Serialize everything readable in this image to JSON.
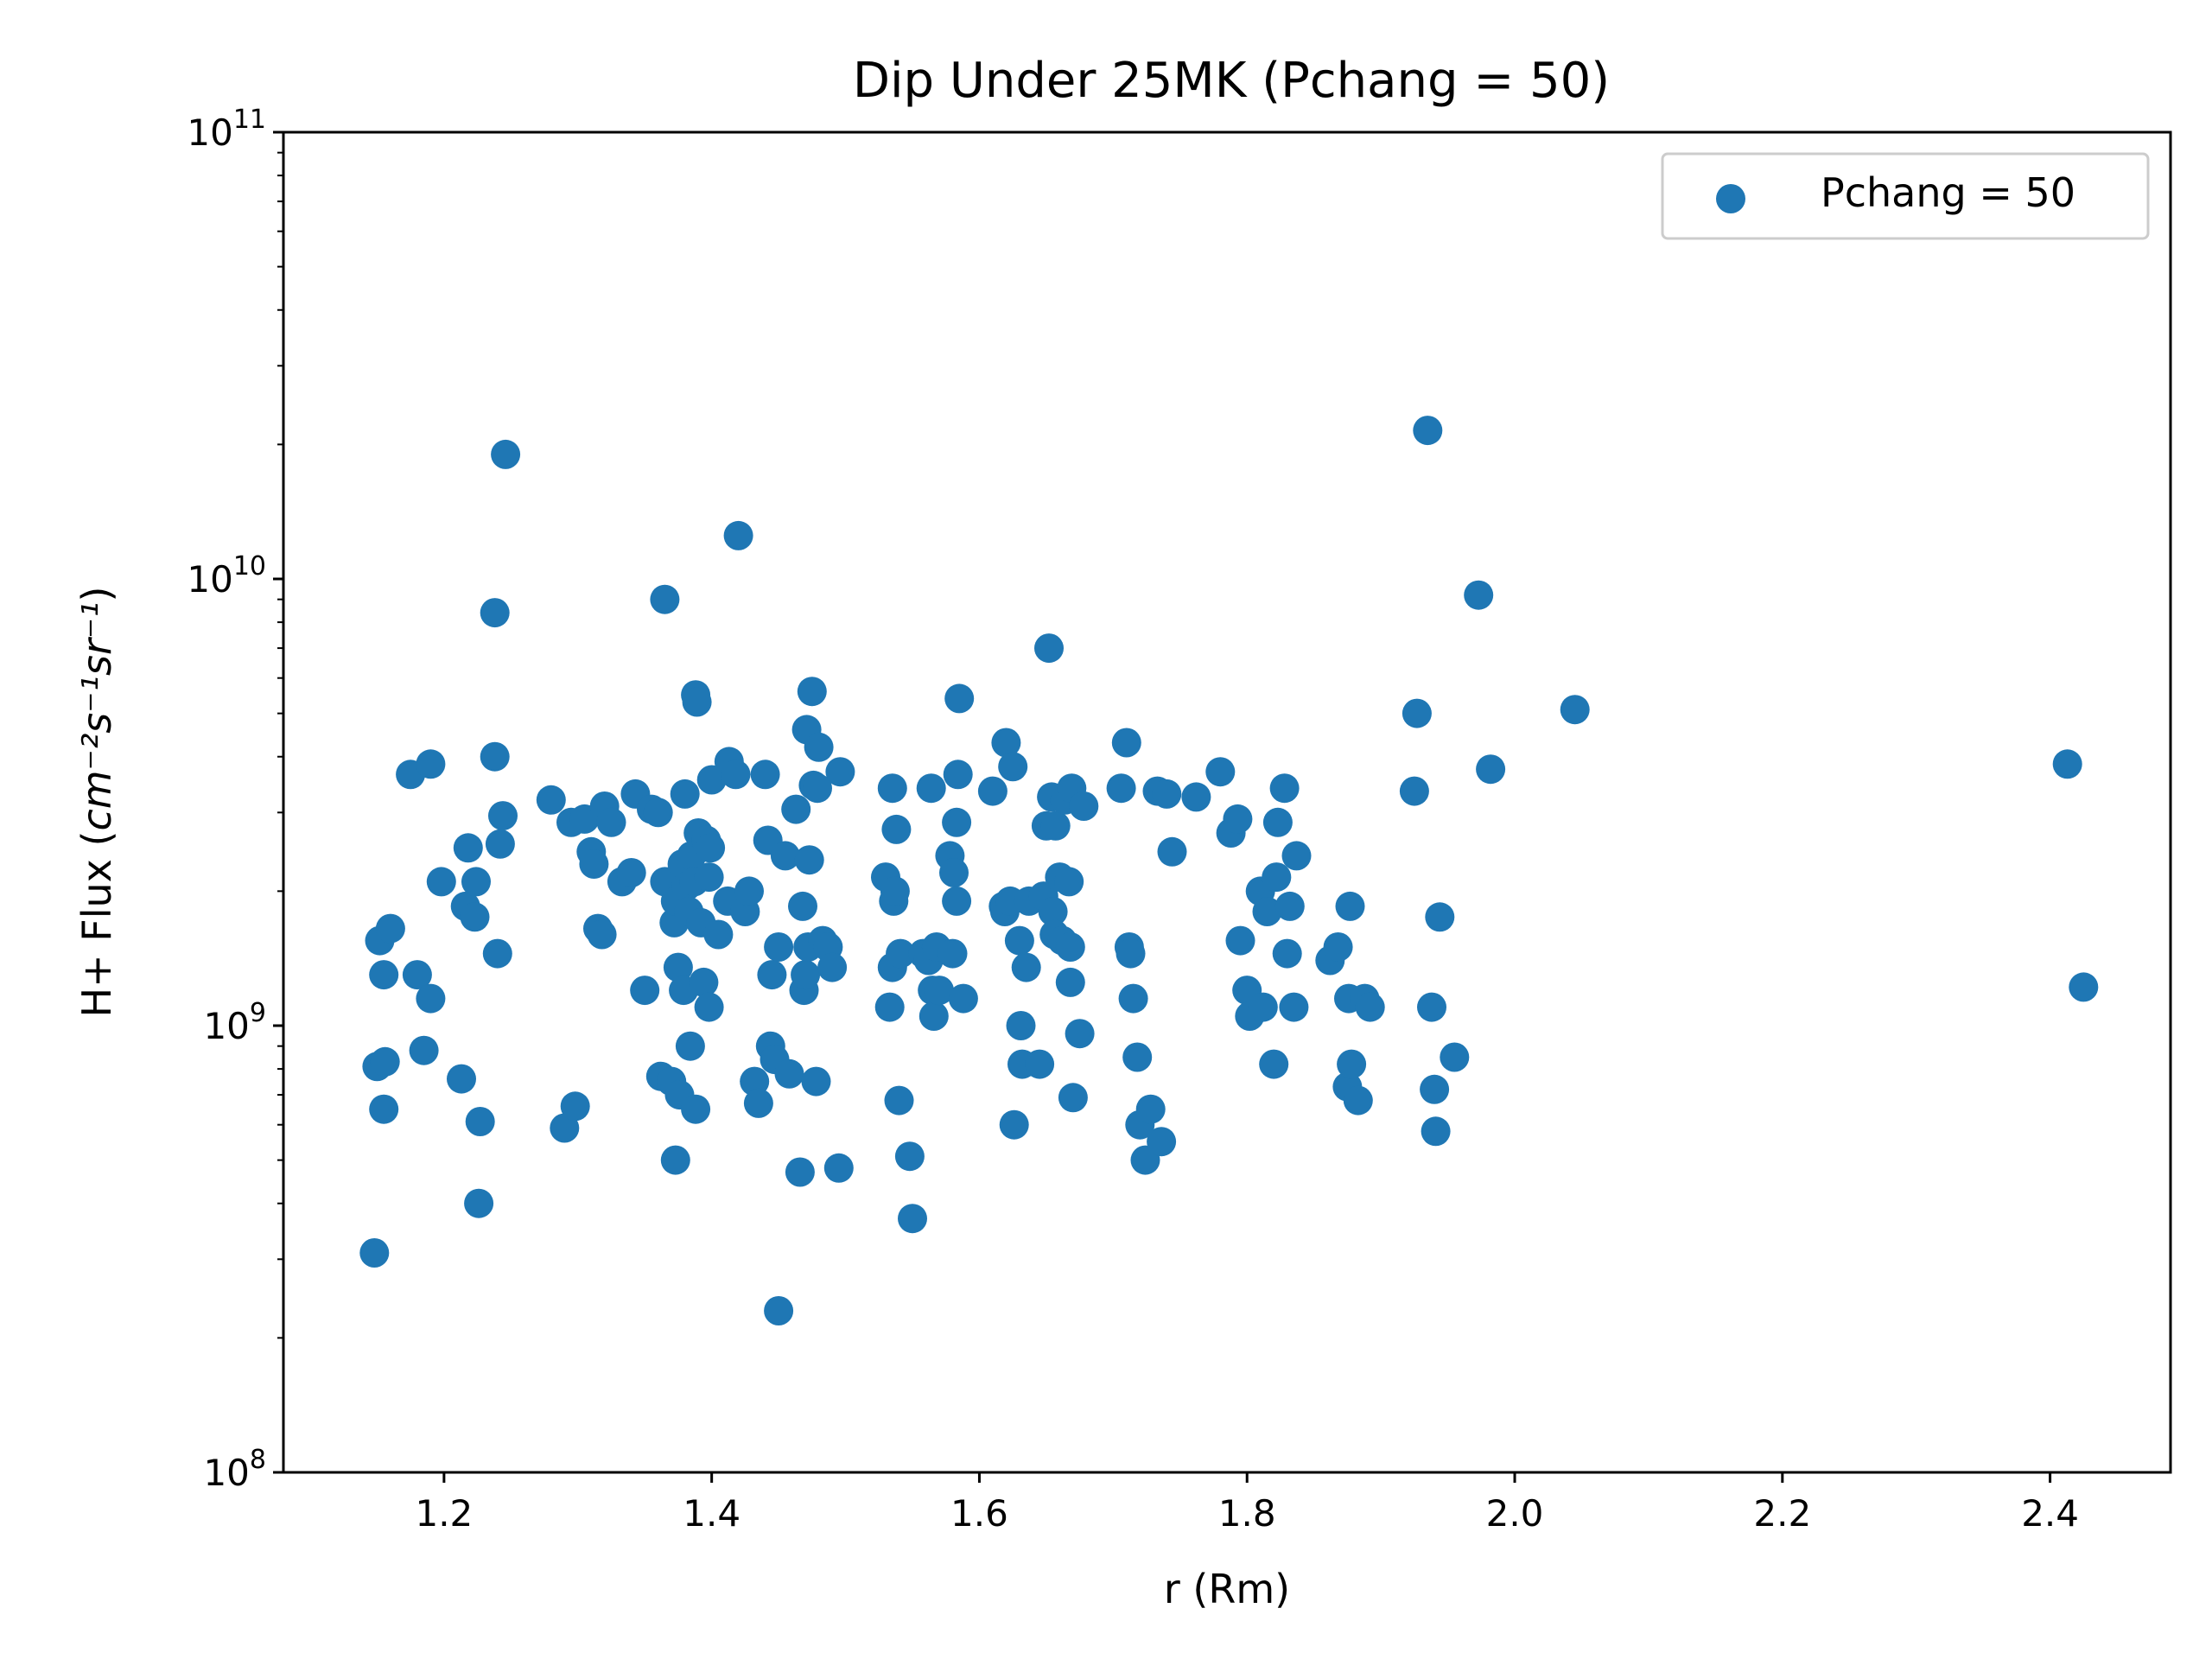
{
  "chart_data": {
    "type": "scatter",
    "title": "Dip Under 25MK  (Pchang = 50)",
    "xlabel": "r (Rm)",
    "ylabel_prefix": "H+ Flux (",
    "ylabel_unit": "cm⁻²s⁻¹sr⁻¹",
    "ylabel_suffix": ")",
    "xlim": [
      1.08,
      2.49
    ],
    "ylim": [
      100000000.0,
      100000000000.0
    ],
    "yscale": "log",
    "grid": false,
    "legend_position": "top-right",
    "series_color": "#1f77b4",
    "x_ticks": [
      "1.2",
      "1.4",
      "1.6",
      "1.8",
      "2.0",
      "2.2",
      "2.4"
    ],
    "y_ticks": [
      {
        "base": "10",
        "exp": "8"
      },
      {
        "base": "10",
        "exp": "9"
      },
      {
        "base": "10",
        "exp": "10"
      },
      {
        "base": "10",
        "exp": "11"
      }
    ],
    "series": [
      {
        "name": "Pchang = 50",
        "points": [
          [
            1.148,
            310000000.0
          ],
          [
            1.15,
            810000000.0
          ],
          [
            1.152,
            1550000000.0
          ],
          [
            1.155,
            650000000.0
          ],
          [
            1.155,
            1300000000.0
          ],
          [
            1.156,
            830000000.0
          ],
          [
            1.16,
            1650000000.0
          ],
          [
            1.175,
            3650000000.0
          ],
          [
            1.18,
            1300000000.0
          ],
          [
            1.185,
            880000000.0
          ],
          [
            1.19,
            3850000000.0
          ],
          [
            1.19,
            1150000000.0
          ],
          [
            1.198,
            2100000000.0
          ],
          [
            1.213,
            760000000.0
          ],
          [
            1.216,
            1850000000.0
          ],
          [
            1.218,
            2500000000.0
          ],
          [
            1.223,
            1750000000.0
          ],
          [
            1.224,
            2100000000.0
          ],
          [
            1.226,
            400000000.0
          ],
          [
            1.227,
            610000000.0
          ],
          [
            1.238,
            8400000000.0
          ],
          [
            1.238,
            4000000000.0
          ],
          [
            1.24,
            1450000000.0
          ],
          [
            1.242,
            2550000000.0
          ],
          [
            1.244,
            2950000000.0
          ],
          [
            1.246,
            19000000000.0
          ],
          [
            1.28,
            3200000000.0
          ],
          [
            1.29,
            590000000.0
          ],
          [
            1.295,
            2850000000.0
          ],
          [
            1.298,
            660000000.0
          ],
          [
            1.305,
            2900000000.0
          ],
          [
            1.31,
            2450000000.0
          ],
          [
            1.312,
            2300000000.0
          ],
          [
            1.315,
            1650000000.0
          ],
          [
            1.318,
            1600000000.0
          ],
          [
            1.32,
            3100000000.0
          ],
          [
            1.325,
            2850000000.0
          ],
          [
            1.333,
            2100000000.0
          ],
          [
            1.34,
            2200000000.0
          ],
          [
            1.343,
            3300000000.0
          ],
          [
            1.35,
            1200000000.0
          ],
          [
            1.355,
            3050000000.0
          ],
          [
            1.36,
            3000000000.0
          ],
          [
            1.362,
            770000000.0
          ],
          [
            1.365,
            9000000000.0
          ],
          [
            1.365,
            2100000000.0
          ],
          [
            1.37,
            750000000.0
          ],
          [
            1.372,
            1700000000.0
          ],
          [
            1.373,
            1900000000.0
          ],
          [
            1.373,
            500000000.0
          ],
          [
            1.375,
            1350000000.0
          ],
          [
            1.376,
            700000000.0
          ],
          [
            1.378,
            2300000000.0
          ],
          [
            1.379,
            1200000000.0
          ],
          [
            1.38,
            3300000000.0
          ],
          [
            1.381,
            2050000000.0
          ],
          [
            1.383,
            1800000000.0
          ],
          [
            1.384,
            900000000.0
          ],
          [
            1.385,
            2400000000.0
          ],
          [
            1.387,
            2100000000.0
          ],
          [
            1.388,
            650000000.0
          ],
          [
            1.388,
            5500000000.0
          ],
          [
            1.389,
            5300000000.0
          ],
          [
            1.39,
            2700000000.0
          ],
          [
            1.392,
            1700000000.0
          ],
          [
            1.394,
            1250000000.0
          ],
          [
            1.396,
            2600000000.0
          ],
          [
            1.398,
            2150000000.0
          ],
          [
            1.398,
            1100000000.0
          ],
          [
            1.399,
            2500000000.0
          ],
          [
            1.4,
            3550000000.0
          ],
          [
            1.405,
            1600000000.0
          ],
          [
            1.412,
            1900000000.0
          ],
          [
            1.413,
            3900000000.0
          ],
          [
            1.418,
            3650000000.0
          ],
          [
            1.42,
            12500000000.0
          ],
          [
            1.425,
            1800000000.0
          ],
          [
            1.428,
            2000000000.0
          ],
          [
            1.432,
            750000000.0
          ],
          [
            1.435,
            670000000.0
          ],
          [
            1.44,
            3650000000.0
          ],
          [
            1.442,
            2600000000.0
          ],
          [
            1.444,
            900000000.0
          ],
          [
            1.445,
            1300000000.0
          ],
          [
            1.447,
            840000000.0
          ],
          [
            1.45,
            230000000.0
          ],
          [
            1.45,
            1500000000.0
          ],
          [
            1.455,
            2400000000.0
          ],
          [
            1.458,
            780000000.0
          ],
          [
            1.463,
            3050000000.0
          ],
          [
            1.466,
            470000000.0
          ],
          [
            1.468,
            1850000000.0
          ],
          [
            1.469,
            1200000000.0
          ],
          [
            1.47,
            1300000000.0
          ],
          [
            1.471,
            4600000000.0
          ],
          [
            1.472,
            1500000000.0
          ],
          [
            1.473,
            2350000000.0
          ],
          [
            1.475,
            5600000000.0
          ],
          [
            1.476,
            3450000000.0
          ],
          [
            1.478,
            750000000.0
          ],
          [
            1.479,
            3400000000.0
          ],
          [
            1.48,
            4200000000.0
          ],
          [
            1.483,
            1550000000.0
          ],
          [
            1.487,
            1500000000.0
          ],
          [
            1.49,
            1350000000.0
          ],
          [
            1.495,
            480000000.0
          ],
          [
            1.496,
            3700000000.0
          ],
          [
            1.53,
            2150000000.0
          ],
          [
            1.533,
            1100000000.0
          ],
          [
            1.535,
            1350000000.0
          ],
          [
            1.535,
            3400000000.0
          ],
          [
            1.536,
            1900000000.0
          ],
          [
            1.537,
            2000000000.0
          ],
          [
            1.538,
            2750000000.0
          ],
          [
            1.54,
            680000000.0
          ],
          [
            1.541,
            1450000000.0
          ],
          [
            1.548,
            510000000.0
          ],
          [
            1.55,
            370000000.0
          ],
          [
            1.558,
            1450000000.0
          ],
          [
            1.562,
            1400000000.0
          ],
          [
            1.564,
            3400000000.0
          ],
          [
            1.565,
            1200000000.0
          ],
          [
            1.566,
            1050000000.0
          ],
          [
            1.568,
            1500000000.0
          ],
          [
            1.57,
            1200000000.0
          ],
          [
            1.578,
            2400000000.0
          ],
          [
            1.58,
            1450000000.0
          ],
          [
            1.581,
            2200000000.0
          ],
          [
            1.583,
            1900000000.0
          ],
          [
            1.583,
            2850000000.0
          ],
          [
            1.584,
            3650000000.0
          ],
          [
            1.585,
            5400000000.0
          ],
          [
            1.588,
            1150000000.0
          ],
          [
            1.61,
            3350000000.0
          ],
          [
            1.618,
            1850000000.0
          ],
          [
            1.619,
            1800000000.0
          ],
          [
            1.62,
            4300000000.0
          ],
          [
            1.623,
            1900000000.0
          ],
          [
            1.625,
            3800000000.0
          ],
          [
            1.626,
            600000000.0
          ],
          [
            1.63,
            1550000000.0
          ],
          [
            1.631,
            1000000000.0
          ],
          [
            1.632,
            820000000.0
          ],
          [
            1.635,
            1350000000.0
          ],
          [
            1.637,
            1900000000.0
          ],
          [
            1.645,
            820000000.0
          ],
          [
            1.648,
            1950000000.0
          ],
          [
            1.65,
            2800000000.0
          ],
          [
            1.652,
            7000000000.0
          ],
          [
            1.654,
            3250000000.0
          ],
          [
            1.655,
            1800000000.0
          ],
          [
            1.656,
            1600000000.0
          ],
          [
            1.657,
            2800000000.0
          ],
          [
            1.66,
            2150000000.0
          ],
          [
            1.662,
            1550000000.0
          ],
          [
            1.664,
            3200000000.0
          ],
          [
            1.667,
            2100000000.0
          ],
          [
            1.668,
            1250000000.0
          ],
          [
            1.668,
            1500000000.0
          ],
          [
            1.669,
            3400000000.0
          ],
          [
            1.67,
            690000000.0
          ],
          [
            1.675,
            960000000.0
          ],
          [
            1.678,
            3100000000.0
          ],
          [
            1.706,
            3400000000.0
          ],
          [
            1.71,
            4300000000.0
          ],
          [
            1.712,
            1500000000.0
          ],
          [
            1.713,
            1450000000.0
          ],
          [
            1.715,
            1150000000.0
          ],
          [
            1.718,
            850000000.0
          ],
          [
            1.72,
            600000000.0
          ],
          [
            1.724,
            500000000.0
          ],
          [
            1.728,
            650000000.0
          ],
          [
            1.733,
            3350000000.0
          ],
          [
            1.736,
            550000000.0
          ],
          [
            1.74,
            3300000000.0
          ],
          [
            1.744,
            2450000000.0
          ],
          [
            1.762,
            3250000000.0
          ],
          [
            1.78,
            3700000000.0
          ],
          [
            1.788,
            2700000000.0
          ],
          [
            1.793,
            2900000000.0
          ],
          [
            1.795,
            1550000000.0
          ],
          [
            1.8,
            1200000000.0
          ],
          [
            1.802,
            1050000000.0
          ],
          [
            1.81,
            2000000000.0
          ],
          [
            1.812,
            1100000000.0
          ],
          [
            1.815,
            1800000000.0
          ],
          [
            1.82,
            820000000.0
          ],
          [
            1.822,
            2150000000.0
          ],
          [
            1.823,
            2850000000.0
          ],
          [
            1.828,
            3400000000.0
          ],
          [
            1.83,
            1450000000.0
          ],
          [
            1.832,
            1850000000.0
          ],
          [
            1.835,
            1100000000.0
          ],
          [
            1.837,
            2400000000.0
          ],
          [
            1.862,
            1400000000.0
          ],
          [
            1.868,
            1500000000.0
          ],
          [
            1.875,
            730000000.0
          ],
          [
            1.876,
            1150000000.0
          ],
          [
            1.877,
            1850000000.0
          ],
          [
            1.878,
            820000000.0
          ],
          [
            1.883,
            680000000.0
          ],
          [
            1.888,
            1150000000.0
          ],
          [
            1.892,
            1100000000.0
          ],
          [
            1.925,
            3350000000.0
          ],
          [
            1.927,
            5000000000.0
          ],
          [
            1.935,
            21500000000.0
          ],
          [
            1.938,
            1100000000.0
          ],
          [
            1.94,
            720000000.0
          ],
          [
            1.941,
            580000000.0
          ],
          [
            1.944,
            1750000000.0
          ],
          [
            1.955,
            850000000.0
          ],
          [
            1.973,
            9200000000.0
          ],
          [
            1.982,
            3750000000.0
          ],
          [
            2.045,
            5100000000.0
          ],
          [
            2.413,
            3850000000.0
          ],
          [
            2.425,
            1220000000.0
          ]
        ]
      }
    ]
  }
}
